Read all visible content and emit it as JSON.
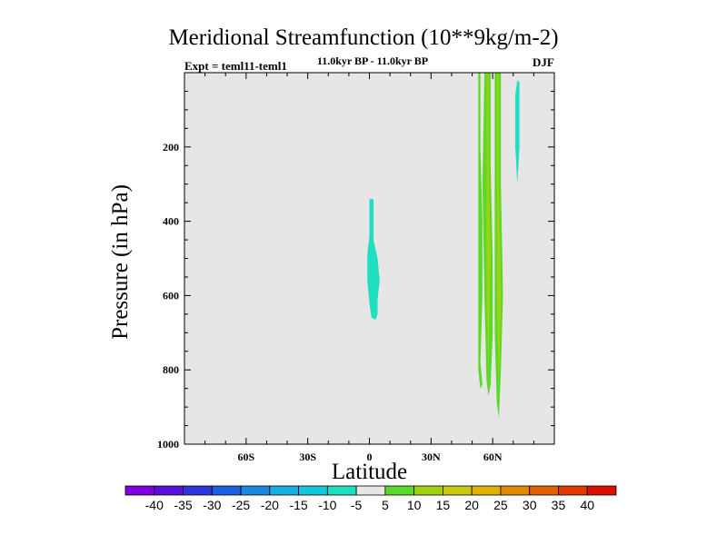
{
  "chart_data": {
    "type": "heatmap",
    "title": "Meridional Streamfunction (10**9kg/m-2)",
    "subtitle_left": "Expt = teml11-teml1",
    "subtitle_center": "11.0kyr BP - 11.0kyr BP",
    "subtitle_right": "DJF",
    "xlabel": "Latitude",
    "ylabel": "Pressure (in hPa)",
    "xlim": [
      -90,
      90
    ],
    "ylim": [
      1000,
      0
    ],
    "x_ticks": [
      {
        "value": -60,
        "label": "60S"
      },
      {
        "value": -30,
        "label": "30S"
      },
      {
        "value": 0,
        "label": "0"
      },
      {
        "value": 30,
        "label": "30N"
      },
      {
        "value": 60,
        "label": "60N"
      }
    ],
    "y_ticks": [
      {
        "value": 200,
        "label": "200"
      },
      {
        "value": 400,
        "label": "400"
      },
      {
        "value": 600,
        "label": "600"
      },
      {
        "value": 800,
        "label": "800"
      },
      {
        "value": 1000,
        "label": "1000"
      }
    ],
    "background_color": "#e6e6e6",
    "regions": [
      {
        "name": "tropical-negative-cell",
        "level": -10,
        "color": "#1ee0c0",
        "outline": [
          [
            0,
            340
          ],
          [
            2,
            340
          ],
          [
            2,
            450
          ],
          [
            4,
            500
          ],
          [
            5,
            560
          ],
          [
            4,
            610
          ],
          [
            4,
            650
          ],
          [
            3,
            665
          ],
          [
            1,
            660
          ],
          [
            0,
            620
          ],
          [
            -1,
            560
          ],
          [
            -1,
            490
          ],
          [
            0,
            440
          ]
        ]
      },
      {
        "name": "high-lat-negative-cell",
        "level": -10,
        "color": "#1ee0c0",
        "outline": [
          [
            72,
            20
          ],
          [
            73,
            25
          ],
          [
            73,
            200
          ],
          [
            72,
            300
          ],
          [
            71,
            200
          ],
          [
            71,
            60
          ]
        ]
      },
      {
        "name": "nh-positive-cell-1",
        "level": 5,
        "color": "#5ad82c",
        "outline": [
          [
            53,
            0
          ],
          [
            54,
            0
          ],
          [
            54,
            200
          ],
          [
            55,
            400
          ],
          [
            55,
            600
          ],
          [
            54,
            780
          ],
          [
            55,
            840
          ],
          [
            54,
            850
          ],
          [
            53,
            800
          ],
          [
            53,
            600
          ],
          [
            53,
            200
          ]
        ]
      },
      {
        "name": "nh-positive-cell-2",
        "level": 5,
        "color": "#5ad82c",
        "outline": [
          [
            56,
            0
          ],
          [
            59,
            0
          ],
          [
            59,
            250
          ],
          [
            60,
            500
          ],
          [
            60,
            700
          ],
          [
            59,
            840
          ],
          [
            58,
            870
          ],
          [
            57,
            830
          ],
          [
            56,
            600
          ],
          [
            55,
            300
          ]
        ]
      },
      {
        "name": "nh-positive-cell-3",
        "level": 5,
        "color": "#5ad82c",
        "outline": [
          [
            61,
            0
          ],
          [
            64,
            0
          ],
          [
            64,
            300
          ],
          [
            65,
            600
          ],
          [
            64,
            800
          ],
          [
            63,
            930
          ],
          [
            62,
            890
          ],
          [
            61,
            700
          ],
          [
            61,
            300
          ]
        ]
      },
      {
        "name": "nh-positive-core-2",
        "level": 10,
        "color": "#9ed210",
        "outline": [
          [
            57,
            0
          ],
          [
            58,
            0
          ],
          [
            58,
            200
          ],
          [
            59,
            500
          ],
          [
            58,
            800
          ],
          [
            57,
            600
          ],
          [
            57,
            200
          ]
        ]
      },
      {
        "name": "nh-positive-core-3",
        "level": 10,
        "color": "#9ed210",
        "outline": [
          [
            62,
            0
          ],
          [
            63,
            0
          ],
          [
            63,
            300
          ],
          [
            64,
            600
          ],
          [
            63,
            850
          ],
          [
            62,
            600
          ],
          [
            62,
            300
          ]
        ]
      }
    ],
    "colorbar": {
      "levels": [
        "-40",
        "-35",
        "-30",
        "-25",
        "-20",
        "-15",
        "-10",
        "-5",
        "5",
        "10",
        "15",
        "20",
        "25",
        "30",
        "35",
        "40"
      ],
      "colors": [
        "#8000e0",
        "#5a10d8",
        "#2f35d8",
        "#1e5ee0",
        "#1a88e0",
        "#14aee0",
        "#12c8d8",
        "#1ee0c0",
        "#e6e6e6",
        "#5ad82c",
        "#9ed210",
        "#c8c810",
        "#e0b000",
        "#e08a00",
        "#e06000",
        "#e03a00",
        "#d81000"
      ]
    }
  }
}
